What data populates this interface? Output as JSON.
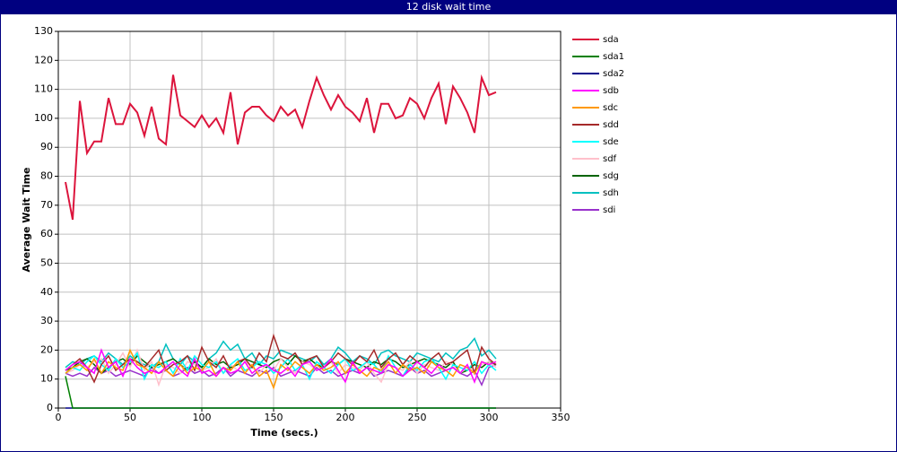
{
  "chart_data": {
    "type": "line",
    "title": "12 disk wait time",
    "x_label": "Time (secs.)",
    "y_label": "Average Wait Time",
    "xlim": [
      0,
      350
    ],
    "xticks": [
      0,
      50,
      100,
      150,
      200,
      250,
      300,
      350
    ],
    "ylim": [
      0,
      130
    ],
    "yticks": [
      0,
      10,
      20,
      30,
      40,
      50,
      60,
      70,
      80,
      90,
      100,
      110,
      120,
      130
    ],
    "grid": true,
    "legend": "right",
    "x": [
      5,
      10,
      15,
      20,
      25,
      30,
      35,
      40,
      45,
      50,
      55,
      60,
      65,
      70,
      75,
      80,
      85,
      90,
      95,
      100,
      105,
      110,
      115,
      120,
      125,
      130,
      135,
      140,
      145,
      150,
      155,
      160,
      165,
      170,
      175,
      180,
      185,
      190,
      195,
      200,
      205,
      210,
      215,
      220,
      225,
      230,
      235,
      240,
      245,
      250,
      255,
      260,
      265,
      270,
      275,
      280,
      285,
      290,
      295,
      300,
      305
    ],
    "series": [
      {
        "name": "sda",
        "color": "#dc143c",
        "values": [
          78,
          65,
          106,
          88,
          92,
          92,
          107,
          98,
          98,
          105,
          102,
          94,
          104,
          93,
          91,
          115,
          101,
          99,
          97,
          101,
          97,
          100,
          95,
          109,
          91,
          102,
          104,
          104,
          101,
          99,
          104,
          101,
          103,
          97,
          106,
          114,
          108,
          103,
          108,
          104,
          102,
          99,
          107,
          95,
          105,
          105,
          100,
          101,
          107,
          105,
          100,
          107,
          112,
          98,
          111,
          107,
          102,
          95,
          114,
          108,
          109
        ]
      },
      {
        "name": "sda1",
        "color": "#008000",
        "values": [
          11,
          0,
          0,
          0,
          0,
          0,
          0,
          0,
          0,
          0,
          0,
          0,
          0,
          0,
          0,
          0,
          0,
          0,
          0,
          0,
          0,
          0,
          0,
          0,
          0,
          0,
          0,
          0,
          0,
          0,
          0,
          0,
          0,
          0,
          0,
          0,
          0,
          0,
          0,
          0,
          0,
          0,
          0,
          0,
          0,
          0,
          0,
          0,
          0,
          0,
          0,
          0,
          0,
          0,
          0,
          0,
          0,
          0,
          0,
          0,
          0
        ]
      },
      {
        "name": "sda2",
        "color": "#00008b",
        "values": [
          0,
          0,
          0,
          0,
          0,
          0,
          0,
          0,
          0,
          0,
          0,
          0,
          0,
          0,
          0,
          0,
          0,
          0,
          0,
          0,
          0,
          0,
          0,
          0,
          0,
          0,
          0,
          0,
          0,
          0,
          0,
          0,
          0,
          0,
          0,
          0,
          0,
          0,
          0,
          0,
          0,
          0,
          0,
          0,
          0,
          0,
          0,
          0,
          0,
          0,
          0,
          0,
          0,
          0,
          0,
          0,
          0,
          0,
          0,
          0,
          0
        ]
      },
      {
        "name": "sdb",
        "color": "#ff00ff",
        "values": [
          13,
          15,
          16,
          14,
          12,
          20,
          14,
          16,
          11,
          17,
          14,
          12,
          13,
          12,
          14,
          16,
          13,
          11,
          17,
          12,
          13,
          11,
          14,
          12,
          13,
          16,
          12,
          14,
          15,
          13,
          12,
          14,
          11,
          15,
          16,
          13,
          14,
          17,
          13,
          9,
          16,
          12,
          14,
          13,
          12,
          15,
          14,
          11,
          13,
          16,
          14,
          12,
          15,
          13,
          14,
          12,
          15,
          9,
          16,
          15,
          16
        ]
      },
      {
        "name": "sdc",
        "color": "#ff9900",
        "values": [
          12,
          14,
          15,
          13,
          17,
          12,
          16,
          14,
          13,
          20,
          15,
          14,
          12,
          16,
          13,
          11,
          15,
          12,
          14,
          13,
          16,
          11,
          14,
          13,
          16,
          12,
          15,
          11,
          13,
          7,
          15,
          13,
          16,
          14,
          12,
          15,
          13,
          14,
          16,
          12,
          15,
          13,
          11,
          14,
          13,
          16,
          12,
          15,
          13,
          14,
          12,
          16,
          14,
          13,
          11,
          15,
          14,
          12,
          16,
          15,
          16
        ]
      },
      {
        "name": "sdd",
        "color": "#a52a2a",
        "values": [
          13,
          15,
          17,
          14,
          9,
          15,
          18,
          13,
          15,
          17,
          16,
          14,
          17,
          20,
          13,
          15,
          16,
          18,
          13,
          21,
          16,
          14,
          18,
          13,
          16,
          17,
          14,
          19,
          16,
          25,
          18,
          17,
          19,
          15,
          17,
          18,
          14,
          16,
          19,
          17,
          15,
          18,
          16,
          20,
          14,
          17,
          19,
          15,
          18,
          16,
          14,
          17,
          19,
          15,
          16,
          18,
          20,
          12,
          21,
          17,
          15
        ]
      },
      {
        "name": "sde",
        "color": "#00ffff",
        "values": [
          12,
          14,
          13,
          16,
          18,
          15,
          13,
          17,
          14,
          16,
          19,
          10,
          15,
          14,
          16,
          12,
          17,
          13,
          18,
          15,
          14,
          16,
          12,
          15,
          17,
          13,
          14,
          16,
          15,
          12,
          14,
          17,
          13,
          15,
          10,
          16,
          14,
          12,
          15,
          17,
          13,
          14,
          16,
          15,
          12,
          18,
          14,
          11,
          15,
          13,
          16,
          17,
          14,
          10,
          15,
          14,
          13,
          16,
          12,
          15,
          13
        ]
      },
      {
        "name": "sdf",
        "color": "#ffc0cb",
        "values": [
          12,
          13,
          15,
          14,
          16,
          17,
          12,
          15,
          19,
          14,
          20,
          13,
          16,
          8,
          15,
          14,
          12,
          16,
          15,
          13,
          14,
          17,
          12,
          15,
          13,
          16,
          14,
          12,
          15,
          13,
          17,
          14,
          12,
          16,
          15,
          13,
          14,
          16,
          12,
          15,
          14,
          13,
          16,
          12,
          9,
          15,
          14,
          13,
          16,
          12,
          15,
          14,
          13,
          16,
          15,
          12,
          14,
          13,
          15,
          16,
          14
        ]
      },
      {
        "name": "sdg",
        "color": "#006400",
        "values": [
          13,
          14,
          16,
          17,
          15,
          12,
          14,
          16,
          17,
          15,
          18,
          16,
          14,
          15,
          16,
          17,
          15,
          13,
          16,
          14,
          17,
          15,
          16,
          14,
          15,
          17,
          16,
          15,
          14,
          16,
          17,
          15,
          18,
          16,
          17,
          15,
          14,
          16,
          15,
          17,
          16,
          15,
          14,
          16,
          15,
          17,
          16,
          14,
          15,
          16,
          17,
          16,
          15,
          14,
          16,
          12,
          13,
          15,
          14,
          16,
          15
        ]
      },
      {
        "name": "sdh",
        "color": "#00c0c0",
        "values": [
          14,
          16,
          15,
          17,
          18,
          16,
          19,
          17,
          15,
          18,
          16,
          15,
          14,
          16,
          22,
          17,
          15,
          18,
          16,
          14,
          17,
          19,
          23,
          20,
          22,
          17,
          19,
          15,
          18,
          17,
          20,
          19,
          18,
          17,
          16,
          18,
          15,
          17,
          21,
          19,
          16,
          18,
          17,
          15,
          19,
          20,
          18,
          17,
          16,
          19,
          18,
          17,
          16,
          19,
          17,
          20,
          21,
          24,
          18,
          20,
          17
        ]
      },
      {
        "name": "sdi",
        "color": "#9932cc",
        "values": [
          12,
          11,
          12,
          11,
          14,
          12,
          13,
          11,
          12,
          13,
          12,
          11,
          14,
          12,
          13,
          11,
          12,
          14,
          12,
          13,
          11,
          12,
          14,
          11,
          13,
          12,
          11,
          13,
          12,
          14,
          11,
          12,
          13,
          12,
          11,
          14,
          12,
          13,
          11,
          12,
          13,
          12,
          14,
          11,
          12,
          13,
          12,
          11,
          14,
          12,
          13,
          11,
          12,
          13,
          14,
          12,
          11,
          13,
          8,
          14,
          15
        ]
      }
    ]
  }
}
